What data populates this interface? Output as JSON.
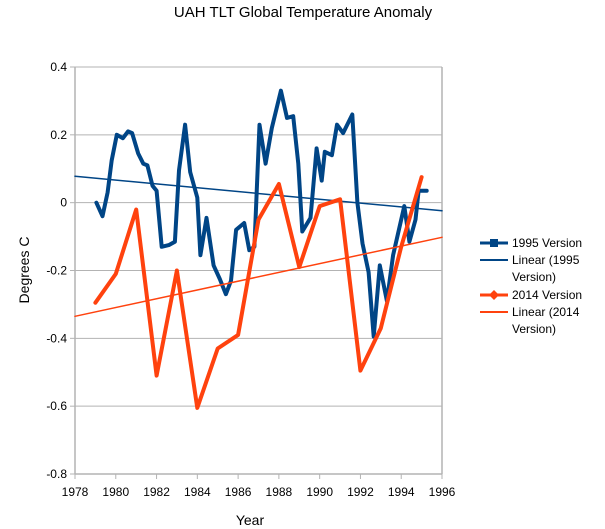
{
  "chart_data": {
    "type": "line",
    "title": "UAH TLT Global Temperature Anomaly",
    "xlabel": "Year",
    "ylabel": "Degrees C",
    "xlim": [
      1978,
      1996
    ],
    "ylim": [
      -0.8,
      0.4
    ],
    "x_ticks": [
      "1978",
      "1980",
      "1982",
      "1984",
      "1986",
      "1988",
      "1990",
      "1992",
      "1994",
      "1996"
    ],
    "y_ticks": [
      "0.4",
      "0.2",
      "0",
      "-0.2",
      "-0.4",
      "-0.6",
      "-0.8"
    ],
    "grid": "horizontal",
    "legend_position": "right",
    "series": [
      {
        "name": "1995 Version",
        "color": "#004586",
        "marker": "square",
        "points": [
          [
            1979.05,
            0.0
          ],
          [
            1979.35,
            -0.04
          ],
          [
            1979.6,
            0.03
          ],
          [
            1979.8,
            0.125
          ],
          [
            1980.05,
            0.2
          ],
          [
            1980.35,
            0.19
          ],
          [
            1980.6,
            0.21
          ],
          [
            1980.8,
            0.205
          ],
          [
            1981.1,
            0.145
          ],
          [
            1981.35,
            0.115
          ],
          [
            1981.55,
            0.11
          ],
          [
            1981.8,
            0.05
          ],
          [
            1982.0,
            0.035
          ],
          [
            1982.25,
            -0.13
          ],
          [
            1982.6,
            -0.125
          ],
          [
            1982.9,
            -0.115
          ],
          [
            1983.1,
            0.095
          ],
          [
            1983.4,
            0.23
          ],
          [
            1983.65,
            0.09
          ],
          [
            1984.0,
            0.015
          ],
          [
            1984.15,
            -0.155
          ],
          [
            1984.45,
            -0.045
          ],
          [
            1984.8,
            -0.185
          ],
          [
            1985.1,
            -0.225
          ],
          [
            1985.4,
            -0.27
          ],
          [
            1985.65,
            -0.23
          ],
          [
            1985.9,
            -0.08
          ],
          [
            1986.3,
            -0.06
          ],
          [
            1986.55,
            -0.14
          ],
          [
            1986.8,
            -0.13
          ],
          [
            1987.05,
            0.23
          ],
          [
            1987.35,
            0.115
          ],
          [
            1987.65,
            0.22
          ],
          [
            1988.1,
            0.33
          ],
          [
            1988.4,
            0.25
          ],
          [
            1988.7,
            0.255
          ],
          [
            1988.95,
            0.115
          ],
          [
            1989.15,
            -0.085
          ],
          [
            1989.55,
            -0.045
          ],
          [
            1989.85,
            0.16
          ],
          [
            1990.1,
            0.065
          ],
          [
            1990.25,
            0.15
          ],
          [
            1990.6,
            0.14
          ],
          [
            1990.85,
            0.23
          ],
          [
            1991.15,
            0.205
          ],
          [
            1991.6,
            0.26
          ],
          [
            1991.85,
            0.0
          ],
          [
            1992.1,
            -0.12
          ],
          [
            1992.4,
            -0.205
          ],
          [
            1992.65,
            -0.395
          ],
          [
            1992.95,
            -0.185
          ],
          [
            1993.3,
            -0.29
          ],
          [
            1993.6,
            -0.155
          ],
          [
            1994.15,
            -0.01
          ],
          [
            1994.4,
            -0.115
          ],
          [
            1994.7,
            -0.05
          ],
          [
            1994.85,
            0.035
          ],
          [
            1995.25,
            0.035
          ]
        ]
      },
      {
        "name": "Linear (1995 Version)",
        "color": "#004586",
        "trendline": true,
        "points": [
          [
            1978,
            0.078
          ],
          [
            1996,
            -0.024
          ]
        ]
      },
      {
        "name": "2014 Version",
        "color": "#ff420e",
        "marker": "diamond",
        "points": [
          [
            1979,
            -0.295
          ],
          [
            1980,
            -0.21
          ],
          [
            1981,
            -0.02
          ],
          [
            1982,
            -0.51
          ],
          [
            1983,
            -0.2
          ],
          [
            1984,
            -0.605
          ],
          [
            1985,
            -0.43
          ],
          [
            1986,
            -0.39
          ],
          [
            1987,
            -0.05
          ],
          [
            1988,
            0.055
          ],
          [
            1989,
            -0.19
          ],
          [
            1990,
            -0.01
          ],
          [
            1991,
            0.01
          ],
          [
            1992,
            -0.495
          ],
          [
            1993,
            -0.37
          ],
          [
            1994,
            -0.13
          ],
          [
            1995,
            0.075
          ]
        ]
      },
      {
        "name": "Linear (2014 Version)",
        "color": "#ff420e",
        "trendline": true,
        "points": [
          [
            1978,
            -0.335
          ],
          [
            1996,
            -0.102
          ]
        ]
      }
    ],
    "legend": [
      {
        "line1": "1995 Version",
        "line2": ""
      },
      {
        "line1": "Linear (1995",
        "line2": "Version)"
      },
      {
        "line1": "2014 Version",
        "line2": ""
      },
      {
        "line1": "Linear (2014",
        "line2": "Version)"
      }
    ]
  }
}
